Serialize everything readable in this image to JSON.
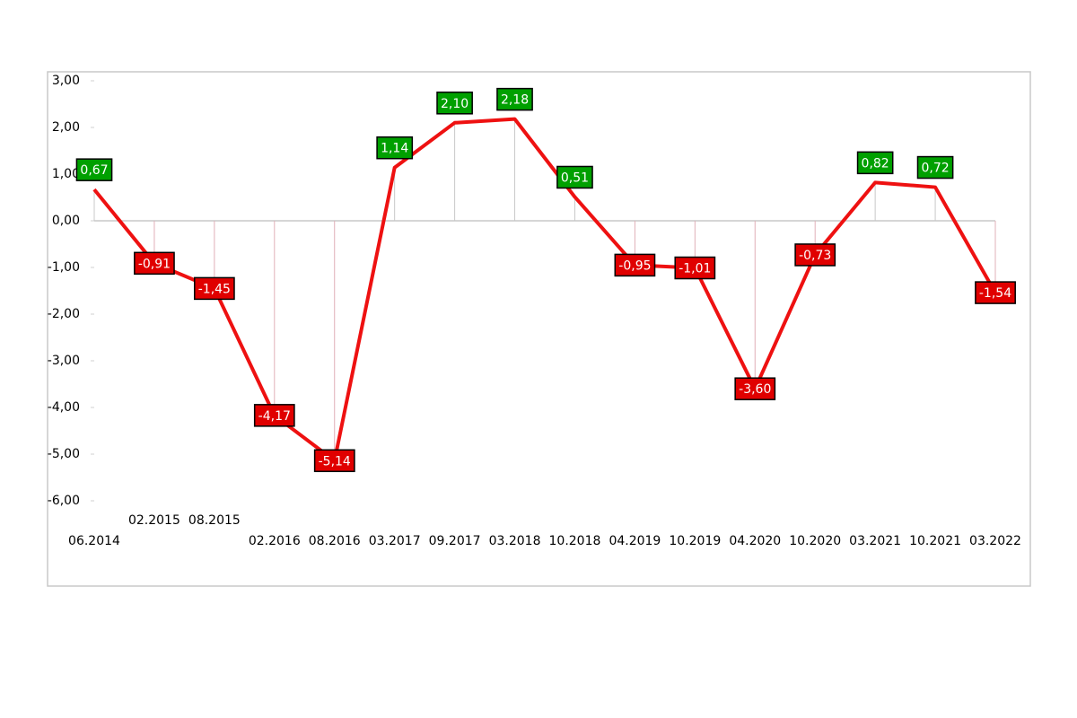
{
  "chart_data": {
    "type": "line",
    "categories": [
      "06.2014",
      "02.2015",
      "08.2015",
      "02.2016",
      "08.2016",
      "03.2017",
      "09.2017",
      "03.2018",
      "10.2018",
      "04.2019",
      "10.2019",
      "04.2020",
      "10.2020",
      "03.2021",
      "10.2021",
      "03.2022"
    ],
    "series": [
      {
        "color": "#ee1111",
        "values": [
          0.67,
          -0.91,
          -1.45,
          -4.17,
          -5.14,
          1.14,
          2.1,
          2.18,
          0.51,
          -0.95,
          -1.01,
          -3.6,
          -0.73,
          0.82,
          0.72,
          -1.54
        ],
        "value_labels": [
          "0,67",
          "-0,91",
          "-1,45",
          "-4,17",
          "-5,14",
          "1,14",
          "2,10",
          "2,18",
          "0,51",
          "-0,95",
          "-1,01",
          "-3,60",
          "-0,73",
          "0,82",
          "0,72",
          "-1,54"
        ]
      }
    ],
    "positive_label_color": "#00a000",
    "negative_label_color": "#e00000",
    "ylim": [
      -6,
      3
    ],
    "yticks": [
      {
        "value": -6,
        "label": "-6,00"
      },
      {
        "value": -5,
        "label": "-5,00"
      },
      {
        "value": -4,
        "label": "-4,00"
      },
      {
        "value": -3,
        "label": "-3,00"
      },
      {
        "value": -2,
        "label": "-2,00"
      },
      {
        "value": -1,
        "label": "-1,00"
      },
      {
        "value": 0,
        "label": "0,00"
      },
      {
        "value": 1,
        "label": "1,00"
      },
      {
        "value": 2,
        "label": "2,00"
      },
      {
        "value": 3,
        "label": "3,00"
      }
    ]
  }
}
